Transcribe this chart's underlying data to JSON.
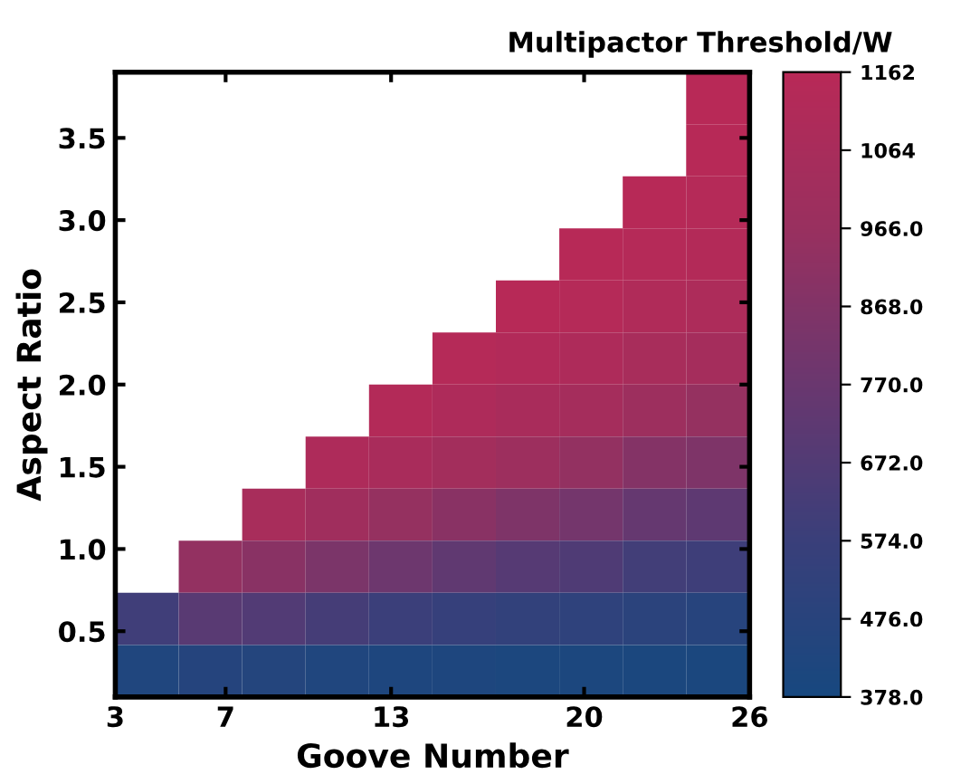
{
  "chart_data": {
    "type": "heatmap",
    "xlabel": "Goove Number",
    "ylabel": "Aspect Ratio",
    "clabel": "Multipactor Threshold/W",
    "x": [
      4.15,
      6.45,
      8.75,
      11.05,
      13.35,
      15.65,
      17.95,
      20.25,
      22.55,
      24.85
    ],
    "y": [
      3.742,
      3.425,
      3.108,
      2.792,
      2.475,
      2.158,
      1.842,
      1.525,
      1.208,
      0.892,
      0.575,
      0.258
    ],
    "xlim": [
      3,
      26
    ],
    "xticks": [
      3,
      7,
      13,
      20,
      26
    ],
    "ylim": [
      0.1,
      3.9
    ],
    "yticks": [
      0.5,
      {
        "value": 1,
        "label": "1.0"
      },
      1.5,
      {
        "value": 2,
        "label": "2.0"
      },
      2.5,
      {
        "value": 3,
        "label": "3.0"
      },
      3.5
    ],
    "clim": [
      378,
      1162
    ],
    "cticks": [
      {
        "value": 378,
        "label": "378.0"
      },
      {
        "value": 476,
        "label": "476.0"
      },
      {
        "value": 574,
        "label": "574.0"
      },
      {
        "value": 672,
        "label": "672.0"
      },
      {
        "value": 770,
        "label": "770.0"
      },
      {
        "value": 868,
        "label": "868.0"
      },
      {
        "value": 966,
        "label": "966.0"
      },
      1064,
      1162
    ],
    "cells": [
      [
        null,
        null,
        null,
        null,
        null,
        null,
        null,
        null,
        null,
        1160
      ],
      [
        null,
        null,
        null,
        null,
        null,
        null,
        null,
        null,
        null,
        1150
      ],
      [
        null,
        null,
        null,
        null,
        null,
        null,
        null,
        null,
        1150,
        1140
      ],
      [
        null,
        null,
        null,
        null,
        null,
        null,
        null,
        1150,
        1140,
        1130
      ],
      [
        null,
        null,
        null,
        null,
        null,
        null,
        1150,
        1140,
        1110,
        1090
      ],
      [
        null,
        null,
        null,
        null,
        null,
        1140,
        1120,
        1100,
        1060,
        1040
      ],
      [
        null,
        null,
        null,
        null,
        1130,
        1100,
        1070,
        1040,
        990,
        950
      ],
      [
        null,
        null,
        null,
        1100,
        1070,
        1030,
        990,
        940,
        880,
        850
      ],
      [
        null,
        null,
        1060,
        1010,
        950,
        900,
        850,
        810,
        750,
        720
      ],
      [
        null,
        940,
        900,
        840,
        780,
        730,
        690,
        660,
        610,
        590
      ],
      [
        600,
        700,
        670,
        620,
        580,
        550,
        530,
        510,
        490,
        470
      ],
      [
        430,
        460,
        450,
        430,
        420,
        420,
        410,
        410,
        400,
        400
      ]
    ]
  }
}
